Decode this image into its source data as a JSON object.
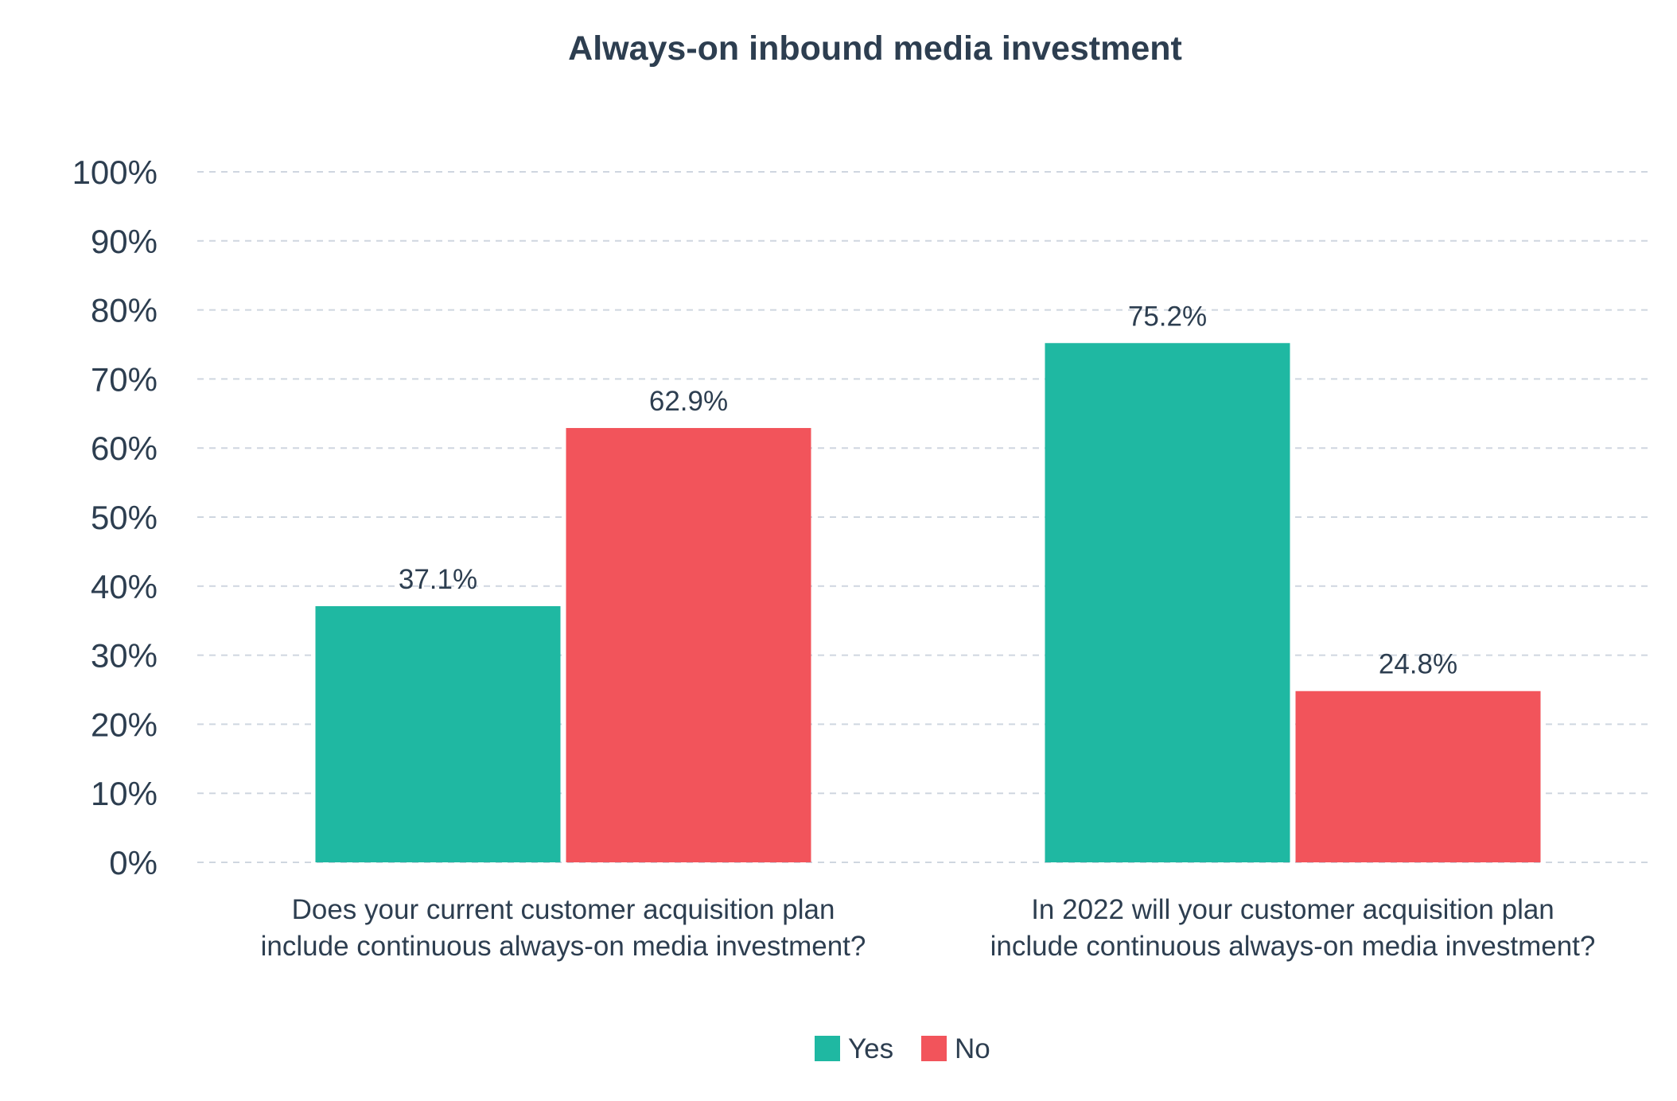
{
  "chart_data": {
    "type": "bar",
    "title": "Always-on inbound media investment",
    "categories": [
      [
        "Does your current customer acquisition plan",
        "include continuous always-on media investment?"
      ],
      [
        "In 2022 will your customer acquisition plan",
        "include continuous always-on media investment?"
      ]
    ],
    "series": [
      {
        "name": "Yes",
        "values": [
          37.1,
          75.2
        ],
        "labels": [
          "37.1%",
          "75.2%"
        ],
        "color": "#1fb8a2"
      },
      {
        "name": "No",
        "values": [
          62.9,
          24.8
        ],
        "labels": [
          "62.9%",
          "24.8%"
        ],
        "color": "#f2545b"
      }
    ],
    "y_ticks": [
      "0%",
      "10%",
      "20%",
      "30%",
      "40%",
      "50%",
      "60%",
      "70%",
      "80%",
      "90%",
      "100%"
    ],
    "ylim": [
      0,
      100
    ],
    "grid": true,
    "legend_position": "bottom-center"
  }
}
